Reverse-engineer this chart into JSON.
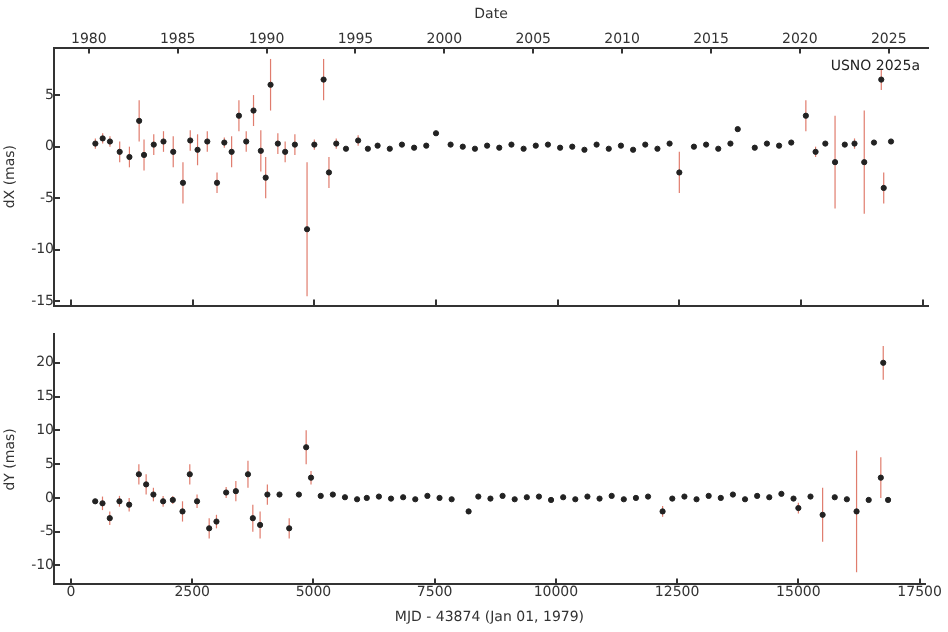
{
  "chart_data": [
    {
      "type": "scatter",
      "x2label": "Date",
      "ylabel": "dX (mas)",
      "annotations": [
        "USNO 2025a"
      ],
      "xlim": [
        -350,
        17610
      ],
      "xticks": [
        0,
        2500,
        5000,
        7500,
        10000,
        12500,
        15000,
        17500
      ],
      "x2lim": [
        1978.04,
        2027.21
      ],
      "x2ticks": [
        1980,
        1985,
        1990,
        1995,
        2000,
        2005,
        2010,
        2015,
        2020,
        2025
      ],
      "ylim": [
        -15.4,
        9.6
      ],
      "yticks": [
        -15,
        -10,
        -5,
        0,
        5
      ],
      "tick_labels": "y",
      "grid": false,
      "legend": false,
      "marker": "circle",
      "series": [
        {
          "color": "#222222",
          "x": [
            500,
            650,
            800,
            1000,
            1200,
            1400,
            1500,
            1700,
            1900,
            2100,
            2300,
            2450,
            2600,
            2800,
            3000,
            3150,
            3300,
            3450,
            3600,
            3750,
            3900,
            4000,
            4100,
            4250,
            4400,
            4600,
            4850,
            5000,
            5190,
            5300,
            5450,
            5650,
            5900,
            6100,
            6300,
            6550,
            6800,
            7050,
            7300,
            7500,
            7800,
            8050,
            8300,
            8550,
            8800,
            9050,
            9300,
            9550,
            9800,
            10050,
            10300,
            10550,
            10800,
            11050,
            11300,
            11550,
            11800,
            12050,
            12300,
            12500,
            12800,
            13050,
            13300,
            13550,
            13700,
            14050,
            14300,
            14550,
            14800,
            15100,
            15300,
            15500,
            15700,
            15900,
            16100,
            16300,
            16500,
            16650,
            16700,
            16850
          ],
          "values": [
            0.3,
            0.8,
            0.5,
            -0.5,
            -1,
            2.5,
            -0.8,
            0.2,
            0.5,
            -0.5,
            -3.5,
            0.6,
            -0.3,
            0.5,
            -3.5,
            0.4,
            -0.5,
            3,
            0.5,
            3.5,
            -0.4,
            -3,
            6,
            0.3,
            -0.5,
            0.2,
            -8,
            0.2,
            6.5,
            -2.5,
            0.3,
            -0.2,
            0.6,
            -0.2,
            0.1,
            -0.2,
            0.2,
            -0.1,
            0.1,
            1.3,
            0.2,
            0,
            -0.2,
            0.1,
            -0.1,
            0.2,
            -0.2,
            0.1,
            0.2,
            -0.1,
            0,
            -0.3,
            0.2,
            -0.2,
            0.1,
            -0.3,
            0.2,
            -0.2,
            0.3,
            -2.5,
            0,
            0.2,
            -0.2,
            0.3,
            1.7,
            -0.1,
            0.3,
            0.1,
            0.4,
            3,
            -0.5,
            0.3,
            -1.5,
            0.2,
            0.3,
            -1.5,
            0.4,
            6.5,
            -4,
            0.5
          ],
          "errors": [
            0.5,
            0.5,
            0.5,
            1,
            1,
            2,
            1.5,
            1,
            1,
            1.5,
            2,
            1,
            1.5,
            1,
            1,
            0.5,
            1.5,
            1.5,
            1,
            1.5,
            2,
            2,
            2.5,
            1,
            1,
            1,
            6.5,
            0.5,
            2,
            1.5,
            0.5,
            null,
            0.5,
            null,
            null,
            null,
            null,
            null,
            null,
            null,
            null,
            null,
            null,
            null,
            null,
            null,
            null,
            null,
            null,
            null,
            null,
            null,
            null,
            null,
            null,
            null,
            null,
            null,
            null,
            2,
            null,
            null,
            null,
            null,
            null,
            null,
            null,
            null,
            null,
            1.5,
            0.5,
            null,
            4.5,
            null,
            0.5,
            5,
            null,
            1,
            1.5,
            null
          ]
        }
      ]
    },
    {
      "type": "scatter",
      "xlabel": "MJD - 43874 (Jan 01, 1979)",
      "ylabel": "dY (mas)",
      "xlim": [
        -350,
        17610
      ],
      "xticks": [
        0,
        2500,
        5000,
        7500,
        10000,
        12500,
        15000,
        17500
      ],
      "ylim": [
        -12.8,
        24.2
      ],
      "yticks": [
        -10,
        -5,
        0,
        5,
        10,
        15,
        20
      ],
      "grid": false,
      "legend": false,
      "marker": "circle",
      "series": [
        {
          "color": "#222222",
          "x": [
            500,
            650,
            800,
            1000,
            1200,
            1400,
            1550,
            1700,
            1900,
            2100,
            2300,
            2450,
            2600,
            2850,
            3000,
            3200,
            3400,
            3650,
            3750,
            3900,
            4050,
            4300,
            4500,
            4700,
            4850,
            4950,
            5150,
            5400,
            5650,
            5900,
            6100,
            6350,
            6600,
            6850,
            7100,
            7350,
            7600,
            7850,
            8200,
            8400,
            8650,
            8900,
            9150,
            9400,
            9650,
            9900,
            10150,
            10400,
            10650,
            10900,
            11150,
            11400,
            11650,
            11900,
            12200,
            12400,
            12650,
            12900,
            13150,
            13400,
            13650,
            13900,
            14150,
            14400,
            14650,
            14900,
            15000,
            15250,
            15500,
            15750,
            16000,
            16200,
            16450,
            16700,
            16750,
            16850
          ],
          "values": [
            -0.5,
            -0.8,
            -3,
            -0.5,
            -1,
            3.5,
            2,
            0.5,
            -0.5,
            -0.3,
            -2,
            3.5,
            -0.5,
            -4.5,
            -3.5,
            0.8,
            1,
            3.5,
            -3,
            -4,
            0.5,
            0.5,
            -4.5,
            0.5,
            7.5,
            3,
            0.3,
            0.5,
            0.1,
            -0.2,
            0,
            0.2,
            -0.1,
            0.1,
            -0.2,
            0.3,
            0,
            -0.2,
            -2,
            0.2,
            -0.1,
            0.3,
            -0.2,
            0.1,
            0.2,
            -0.3,
            0.1,
            -0.2,
            0.2,
            -0.1,
            0.3,
            -0.2,
            0,
            0.2,
            -2,
            -0.1,
            0.2,
            -0.2,
            0.3,
            0,
            0.5,
            -0.2,
            0.3,
            0.1,
            0.6,
            -0.1,
            -1.5,
            0.2,
            -2.5,
            0.1,
            -0.2,
            -2,
            -0.3,
            3,
            20,
            -0.3
          ],
          "errors": [
            null,
            1,
            1,
            0.8,
            1,
            1.5,
            1.5,
            1,
            0.8,
            0.6,
            1.5,
            1.5,
            1,
            1.5,
            1,
            0.8,
            1.5,
            2,
            2,
            2,
            1.5,
            null,
            1.5,
            null,
            2.5,
            1,
            null,
            null,
            null,
            null,
            null,
            null,
            null,
            null,
            null,
            null,
            null,
            null,
            null,
            null,
            null,
            null,
            null,
            null,
            null,
            null,
            null,
            null,
            null,
            null,
            null,
            null,
            null,
            null,
            0.8,
            null,
            null,
            null,
            null,
            null,
            null,
            null,
            null,
            null,
            null,
            null,
            0.8,
            null,
            4,
            null,
            null,
            9,
            null,
            3,
            2.5,
            null
          ]
        }
      ]
    }
  ]
}
